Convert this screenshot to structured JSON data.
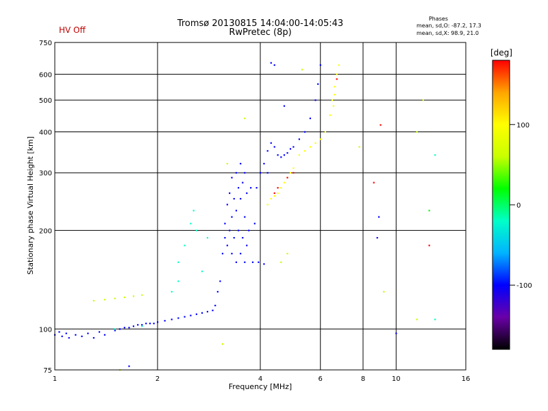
{
  "header": {
    "hv_status": "HV Off",
    "title_line1": "Tromsø 20130815 14:04:00-14:05:43",
    "title_line2": "RwPretec (8p)"
  },
  "phases_box": {
    "heading": "Phases",
    "o_line": "mean, sd,O: -87.2, 17.3",
    "x_line": "mean, sd,X: 98.9, 21.0"
  },
  "colorbar": {
    "unit": "[deg]",
    "ticks": [
      100,
      0,
      -100
    ],
    "range": [
      -180,
      180
    ],
    "colors": [
      "#000000",
      "#6a00a8",
      "#0000ff",
      "#00b4ff",
      "#00ffc8",
      "#00ff00",
      "#c8ff00",
      "#ffff00",
      "#ffa500",
      "#ff0000"
    ]
  },
  "chart_data": {
    "type": "scatter",
    "xlabel": "Frequency [MHz]",
    "ylabel": "Stationary phase Virtual Height [km]",
    "xscale": "log",
    "yscale": "log",
    "xlim": [
      1,
      16
    ],
    "ylim": [
      75,
      750
    ],
    "xticks": [
      1,
      2,
      4,
      6,
      8,
      10,
      16
    ],
    "yticks": [
      75,
      100,
      200,
      300,
      400,
      500,
      600,
      750
    ],
    "grid": true,
    "series": [
      {
        "phase_deg": -90,
        "points": [
          [
            1.0,
            96
          ],
          [
            1.03,
            98
          ],
          [
            1.05,
            95
          ],
          [
            1.08,
            97
          ],
          [
            1.1,
            94
          ],
          [
            1.15,
            96
          ],
          [
            1.2,
            95
          ],
          [
            1.25,
            97
          ],
          [
            1.3,
            94
          ],
          [
            1.35,
            98
          ],
          [
            1.4,
            96
          ],
          [
            1.5,
            99
          ],
          [
            1.55,
            100
          ],
          [
            1.6,
            101
          ],
          [
            1.65,
            101
          ],
          [
            1.7,
            102
          ],
          [
            1.75,
            103
          ],
          [
            1.8,
            103
          ],
          [
            1.85,
            104
          ],
          [
            1.9,
            104
          ],
          [
            1.95,
            104
          ],
          [
            2.0,
            105
          ],
          [
            2.1,
            106
          ],
          [
            2.2,
            107
          ],
          [
            2.3,
            108
          ],
          [
            2.4,
            109
          ],
          [
            2.5,
            110
          ],
          [
            2.6,
            111
          ],
          [
            2.7,
            112
          ],
          [
            2.8,
            113
          ],
          [
            2.9,
            114
          ],
          [
            2.95,
            118
          ],
          [
            3.0,
            130
          ],
          [
            3.05,
            140
          ],
          [
            3.1,
            170
          ],
          [
            3.15,
            190
          ],
          [
            3.15,
            210
          ],
          [
            3.2,
            180
          ],
          [
            3.2,
            240
          ],
          [
            3.25,
            200
          ],
          [
            3.25,
            260
          ],
          [
            3.3,
            170
          ],
          [
            3.3,
            220
          ],
          [
            3.3,
            290
          ],
          [
            3.35,
            190
          ],
          [
            3.35,
            250
          ],
          [
            3.4,
            160
          ],
          [
            3.4,
            230
          ],
          [
            3.4,
            300
          ],
          [
            3.45,
            200
          ],
          [
            3.45,
            270
          ],
          [
            3.5,
            170
          ],
          [
            3.5,
            250
          ],
          [
            3.5,
            320
          ],
          [
            3.55,
            190
          ],
          [
            3.55,
            280
          ],
          [
            3.6,
            160
          ],
          [
            3.6,
            220
          ],
          [
            3.6,
            300
          ],
          [
            3.65,
            180
          ],
          [
            3.65,
            260
          ],
          [
            3.7,
            200
          ],
          [
            3.75,
            270
          ],
          [
            3.8,
            160
          ],
          [
            3.85,
            210
          ],
          [
            3.9,
            270
          ],
          [
            4.0,
            300
          ],
          [
            4.1,
            320
          ],
          [
            4.2,
            350
          ],
          [
            4.3,
            370
          ],
          [
            4.4,
            360
          ],
          [
            4.5,
            340
          ],
          [
            4.6,
            335
          ],
          [
            4.7,
            340
          ],
          [
            4.8,
            345
          ],
          [
            4.9,
            355
          ],
          [
            5.0,
            360
          ],
          [
            5.2,
            380
          ],
          [
            5.4,
            400
          ],
          [
            5.6,
            440
          ],
          [
            5.8,
            500
          ],
          [
            5.9,
            560
          ],
          [
            6.0,
            640
          ],
          [
            3.95,
            160
          ],
          [
            4.1,
            158
          ],
          [
            4.2,
            300
          ],
          [
            4.3,
            650
          ],
          [
            4.4,
            640
          ]
        ]
      },
      {
        "phase_deg": -40,
        "points": [
          [
            2.3,
            160
          ],
          [
            2.4,
            180
          ],
          [
            2.5,
            210
          ],
          [
            2.55,
            230
          ],
          [
            2.6,
            200
          ],
          [
            2.2,
            130
          ],
          [
            2.3,
            140
          ],
          [
            2.7,
            150
          ],
          [
            2.8,
            190
          ],
          [
            1.5,
            100
          ],
          [
            1.8,
            102
          ]
        ]
      },
      {
        "phase_deg": 100,
        "points": [
          [
            4.2,
            240
          ],
          [
            4.3,
            250
          ],
          [
            4.4,
            255
          ],
          [
            4.5,
            260
          ],
          [
            4.6,
            270
          ],
          [
            4.7,
            280
          ],
          [
            4.8,
            290
          ],
          [
            4.9,
            300
          ],
          [
            5.0,
            310
          ],
          [
            5.2,
            340
          ],
          [
            5.4,
            350
          ],
          [
            5.6,
            360
          ],
          [
            5.8,
            370
          ],
          [
            6.0,
            380
          ],
          [
            6.2,
            400
          ],
          [
            6.4,
            450
          ],
          [
            6.5,
            500
          ],
          [
            6.6,
            550
          ],
          [
            6.7,
            600
          ],
          [
            6.8,
            640
          ],
          [
            6.55,
            480
          ],
          [
            6.6,
            520
          ]
        ]
      },
      {
        "phase_deg": 160,
        "points": [
          [
            4.4,
            260
          ],
          [
            4.5,
            270
          ],
          [
            4.8,
            290
          ],
          [
            5.0,
            300
          ],
          [
            6.7,
            580
          ],
          [
            9.0,
            420
          ],
          [
            12.5,
            180
          ],
          [
            8.6,
            280
          ]
        ]
      },
      {
        "phase_deg": 60,
        "points": [
          [
            1.3,
            122
          ],
          [
            1.4,
            123
          ],
          [
            1.5,
            124
          ],
          [
            1.6,
            125
          ],
          [
            1.7,
            126
          ],
          [
            1.8,
            127
          ],
          [
            3.2,
            320
          ],
          [
            3.6,
            440
          ],
          [
            4.6,
            160
          ],
          [
            4.8,
            170
          ],
          [
            5.3,
            620
          ],
          [
            7.8,
            360
          ],
          [
            9.2,
            130
          ],
          [
            11.5,
            400
          ],
          [
            11.5,
            107
          ],
          [
            12.0,
            500
          ],
          [
            3.1,
            90
          ],
          [
            1.55,
            75
          ]
        ]
      },
      {
        "phase_deg": -120,
        "points": [
          [
            8.8,
            190
          ],
          [
            8.9,
            220
          ],
          [
            10.0,
            97
          ],
          [
            4.7,
            480
          ],
          [
            1.65,
            77
          ]
        ]
      },
      {
        "phase_deg": -20,
        "points": [
          [
            13.0,
            340
          ],
          [
            13.0,
            107
          ]
        ]
      },
      {
        "phase_deg": 20,
        "points": [
          [
            12.5,
            230
          ]
        ]
      }
    ]
  }
}
